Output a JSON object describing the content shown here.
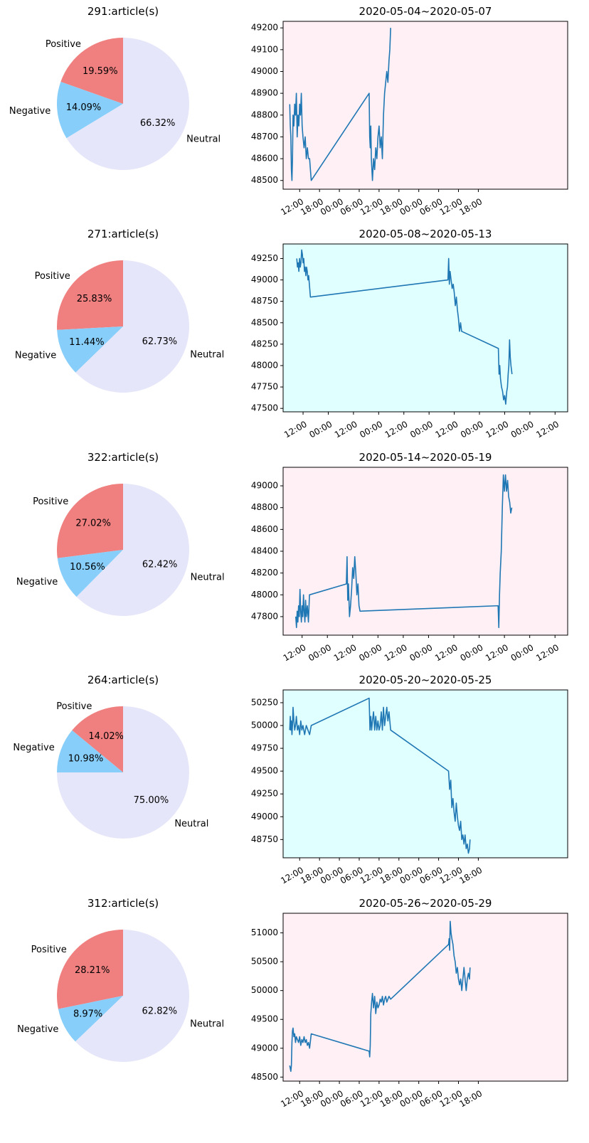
{
  "colors": {
    "positive": "#f08080",
    "negative": "#87cefa",
    "neutral": "#e6e6fa",
    "line": "#1f77b4",
    "bg_pink": "#fff0f5",
    "bg_cyan": "#e0ffff"
  },
  "chart_data": [
    {
      "type": "pie",
      "title": "291:article(s)",
      "labels": [
        "Positive",
        "Negative",
        "Neutral"
      ],
      "values": [
        19.59,
        14.09,
        66.32
      ],
      "value_labels": [
        "19.59%",
        "14.09%",
        "66.32%"
      ]
    },
    {
      "type": "line",
      "title": "2020-05-04~2020-05-07",
      "background": "pink",
      "yticks": [
        48500,
        48600,
        48700,
        48800,
        48900,
        49000,
        49100,
        49200
      ],
      "ylim": [
        48460,
        49230
      ],
      "xlim": [
        "2020-05-04 07:00",
        "2020-05-07 21:00"
      ],
      "xticks": [
        "2020-05-04 12:00",
        "2020-05-04 18:00",
        "2020-05-05 00:00",
        "2020-05-05 06:00",
        "2020-05-05 12:00",
        "2020-05-05 18:00",
        "2020-05-06 00:00",
        "2020-05-06 06:00",
        "2020-05-06 12:00",
        "2020-05-06 18:00"
      ],
      "xtick_labels": [
        "12:00",
        "18:00",
        "00:00",
        "06:00",
        "12:00",
        "18:00",
        "00:00",
        "06:00",
        "12:00",
        "18:00"
      ],
      "x": [
        "2020-05-04 09:00",
        "2020-05-04 09:10",
        "2020-05-04 09:20",
        "2020-05-04 09:30",
        "2020-05-04 09:40",
        "2020-05-04 09:50",
        "2020-05-04 10:00",
        "2020-05-04 10:15",
        "2020-05-04 10:30",
        "2020-05-04 10:45",
        "2020-05-04 11:00",
        "2020-05-04 11:15",
        "2020-05-04 11:30",
        "2020-05-04 11:45",
        "2020-05-04 12:00",
        "2020-05-04 12:15",
        "2020-05-04 12:30",
        "2020-05-04 12:45",
        "2020-05-04 13:00",
        "2020-05-04 13:20",
        "2020-05-04 13:40",
        "2020-05-04 14:00",
        "2020-05-04 14:20",
        "2020-05-04 14:40",
        "2020-05-04 15:00",
        "2020-05-04 15:15",
        "2020-05-04 15:30",
        "2020-05-05 09:00",
        "2020-05-05 09:10",
        "2020-05-05 09:20",
        "2020-05-05 09:30",
        "2020-05-05 09:40",
        "2020-05-05 09:50",
        "2020-05-05 10:00",
        "2020-05-05 10:20",
        "2020-05-05 10:40",
        "2020-05-05 11:00",
        "2020-05-05 11:20",
        "2020-05-05 11:40",
        "2020-05-05 12:00",
        "2020-05-05 12:20",
        "2020-05-05 12:40",
        "2020-05-05 13:00",
        "2020-05-05 13:20",
        "2020-05-05 13:40",
        "2020-05-05 14:00",
        "2020-05-05 14:20",
        "2020-05-05 14:40",
        "2020-05-05 15:00",
        "2020-05-05 15:15",
        "2020-05-05 15:30"
      ],
      "y": [
        48850,
        48750,
        48700,
        48550,
        48500,
        48600,
        48800,
        48750,
        48850,
        48800,
        48900,
        48700,
        48800,
        48750,
        48850,
        48800,
        48900,
        48750,
        48700,
        48650,
        48700,
        48600,
        48650,
        48600,
        48600,
        48550,
        48500,
        48900,
        48700,
        48650,
        48750,
        48600,
        48550,
        48500,
        48600,
        48550,
        48650,
        48600,
        48700,
        48750,
        48650,
        48700,
        48600,
        48800,
        48900,
        48950,
        49000,
        48950,
        49050,
        49100,
        49200
      ]
    },
    {
      "type": "pie",
      "title": "271:article(s)",
      "labels": [
        "Positive",
        "Negative",
        "Neutral"
      ],
      "values": [
        25.83,
        11.44,
        62.73
      ],
      "value_labels": [
        "25.83%",
        "11.44%",
        "62.73%"
      ]
    },
    {
      "type": "line",
      "title": "2020-05-08~2020-05-13",
      "background": "cyan",
      "yticks": [
        47500,
        47750,
        48000,
        48250,
        48500,
        48750,
        49000,
        49250
      ],
      "ylim": [
        47460,
        49420
      ],
      "xlim": [
        "2020-05-08 02:30",
        "2020-05-13 18:00"
      ],
      "xticks": [
        "2020-05-08 12:00",
        "2020-05-09 00:00",
        "2020-05-09 12:00",
        "2020-05-10 00:00",
        "2020-05-10 12:00",
        "2020-05-11 00:00",
        "2020-05-11 12:00",
        "2020-05-12 00:00",
        "2020-05-12 12:00",
        "2020-05-13 00:00",
        "2020-05-13 12:00"
      ],
      "xtick_labels": [
        "12:00",
        "00:00",
        "12:00",
        "00:00",
        "12:00",
        "00:00",
        "12:00",
        "00:00",
        "12:00",
        "00:00",
        "12:00"
      ],
      "x": [
        "2020-05-08 09:00",
        "2020-05-08 09:20",
        "2020-05-08 09:40",
        "2020-05-08 10:00",
        "2020-05-08 10:20",
        "2020-05-08 10:40",
        "2020-05-08 11:00",
        "2020-05-08 11:20",
        "2020-05-08 11:40",
        "2020-05-08 12:00",
        "2020-05-08 12:20",
        "2020-05-08 12:40",
        "2020-05-08 13:00",
        "2020-05-08 13:20",
        "2020-05-08 13:40",
        "2020-05-08 14:00",
        "2020-05-08 14:20",
        "2020-05-08 14:40",
        "2020-05-08 15:00",
        "2020-05-08 15:30",
        "2020-05-11 09:00",
        "2020-05-11 09:20",
        "2020-05-11 09:40",
        "2020-05-11 10:00",
        "2020-05-11 10:30",
        "2020-05-11 11:00",
        "2020-05-11 11:30",
        "2020-05-11 12:00",
        "2020-05-11 12:30",
        "2020-05-11 13:00",
        "2020-05-11 13:30",
        "2020-05-11 14:00",
        "2020-05-11 14:30",
        "2020-05-11 15:00",
        "2020-05-11 15:30",
        "2020-05-12 09:00",
        "2020-05-12 09:20",
        "2020-05-12 09:40",
        "2020-05-12 10:00",
        "2020-05-12 10:30",
        "2020-05-12 11:00",
        "2020-05-12 11:30",
        "2020-05-12 12:00",
        "2020-05-12 12:30",
        "2020-05-12 13:00",
        "2020-05-12 13:20",
        "2020-05-12 13:40",
        "2020-05-12 14:00",
        "2020-05-12 14:20",
        "2020-05-12 14:40",
        "2020-05-12 15:00",
        "2020-05-12 15:30"
      ],
      "y": [
        49250,
        49150,
        49200,
        49100,
        49250,
        49150,
        49200,
        49350,
        49300,
        49200,
        49250,
        49100,
        49150,
        49050,
        49150,
        49100,
        49000,
        49050,
        48950,
        48800,
        49000,
        49250,
        48950,
        49100,
        49000,
        48900,
        48950,
        48850,
        48700,
        48800,
        48650,
        48550,
        48400,
        48500,
        48400,
        48200,
        47900,
        48000,
        47850,
        47750,
        47700,
        47600,
        47650,
        47550,
        47700,
        47750,
        47900,
        48000,
        48300,
        48100,
        48000,
        47900
      ]
    },
    {
      "type": "pie",
      "title": "322:article(s)",
      "labels": [
        "Positive",
        "Negative",
        "Neutral"
      ],
      "values": [
        27.02,
        10.56,
        62.42
      ],
      "value_labels": [
        "27.02%",
        "10.56%",
        "62.42%"
      ]
    },
    {
      "type": "line",
      "title": "2020-05-14~2020-05-19",
      "background": "pink",
      "yticks": [
        47800,
        48000,
        48200,
        48400,
        48600,
        48800,
        49000
      ],
      "ylim": [
        47630,
        49170
      ],
      "xlim": [
        "2020-05-14 03:00",
        "2020-05-19 18:00"
      ],
      "xticks": [
        "2020-05-14 12:00",
        "2020-05-15 00:00",
        "2020-05-15 12:00",
        "2020-05-16 00:00",
        "2020-05-16 12:00",
        "2020-05-17 00:00",
        "2020-05-17 12:00",
        "2020-05-18 00:00",
        "2020-05-18 12:00",
        "2020-05-19 00:00",
        "2020-05-19 12:00"
      ],
      "xtick_labels": [
        "12:00",
        "00:00",
        "12:00",
        "00:00",
        "12:00",
        "00:00",
        "12:00",
        "00:00",
        "12:00",
        "00:00",
        "12:00"
      ],
      "x": [
        "2020-05-14 09:00",
        "2020-05-14 09:20",
        "2020-05-14 09:40",
        "2020-05-14 10:00",
        "2020-05-14 10:20",
        "2020-05-14 10:40",
        "2020-05-14 11:00",
        "2020-05-14 11:20",
        "2020-05-14 11:40",
        "2020-05-14 12:00",
        "2020-05-14 12:20",
        "2020-05-14 12:40",
        "2020-05-14 13:00",
        "2020-05-14 13:20",
        "2020-05-14 13:40",
        "2020-05-14 14:00",
        "2020-05-14 14:30",
        "2020-05-14 15:00",
        "2020-05-14 15:30",
        "2020-05-15 09:00",
        "2020-05-15 09:20",
        "2020-05-15 09:40",
        "2020-05-15 10:00",
        "2020-05-15 10:30",
        "2020-05-15 11:00",
        "2020-05-15 11:30",
        "2020-05-15 12:00",
        "2020-05-15 12:30",
        "2020-05-15 13:00",
        "2020-05-15 13:30",
        "2020-05-15 14:00",
        "2020-05-15 14:30",
        "2020-05-15 15:00",
        "2020-05-15 15:30",
        "2020-05-18 09:00",
        "2020-05-18 09:20",
        "2020-05-18 09:40",
        "2020-05-18 10:00",
        "2020-05-18 10:30",
        "2020-05-18 11:00",
        "2020-05-18 11:30",
        "2020-05-18 12:00",
        "2020-05-18 12:30",
        "2020-05-18 13:00",
        "2020-05-18 13:30",
        "2020-05-18 14:00",
        "2020-05-18 14:30",
        "2020-05-18 15:00",
        "2020-05-18 15:30"
      ],
      "y": [
        47800,
        47700,
        47850,
        47750,
        47900,
        47800,
        48050,
        47850,
        47750,
        47900,
        47800,
        48000,
        47850,
        47750,
        47950,
        47800,
        47900,
        47750,
        48000,
        48100,
        48350,
        47950,
        48100,
        47800,
        47900,
        48050,
        48250,
        48150,
        48350,
        48200,
        48000,
        48100,
        47900,
        47850,
        47900,
        47700,
        48000,
        48200,
        48400,
        48800,
        49100,
        48950,
        49100,
        48950,
        49050,
        48900,
        48850,
        48750,
        48800
      ]
    },
    {
      "type": "pie",
      "title": "264:article(s)",
      "labels": [
        "Positive",
        "Negative",
        "Neutral"
      ],
      "values": [
        14.02,
        10.98,
        75.0
      ],
      "value_labels": [
        "14.02%",
        "10.98%",
        "75.00%"
      ]
    },
    {
      "type": "line",
      "title": "2020-05-20~2020-05-25",
      "background": "cyan",
      "yticks": [
        48750,
        49000,
        49250,
        49500,
        49750,
        50000,
        50250
      ],
      "ylim": [
        48550,
        50390
      ],
      "xlim": [
        "2020-05-20 07:00",
        "2020-05-23 21:00"
      ],
      "xticks": [
        "2020-05-20 12:00",
        "2020-05-20 18:00",
        "2020-05-21 00:00",
        "2020-05-21 06:00",
        "2020-05-21 12:00",
        "2020-05-21 18:00",
        "2020-05-22 00:00",
        "2020-05-22 06:00",
        "2020-05-22 12:00",
        "2020-05-22 18:00"
      ],
      "xtick_labels": [
        "12:00",
        "18:00",
        "00:00",
        "06:00",
        "12:00",
        "18:00",
        "00:00",
        "06:00",
        "12:00",
        "18:00"
      ],
      "x": [
        "2020-05-20 09:00",
        "2020-05-20 09:10",
        "2020-05-20 09:20",
        "2020-05-20 09:30",
        "2020-05-20 09:40",
        "2020-05-20 09:50",
        "2020-05-20 10:00",
        "2020-05-20 10:15",
        "2020-05-20 10:30",
        "2020-05-20 10:45",
        "2020-05-20 11:00",
        "2020-05-20 11:20",
        "2020-05-20 11:40",
        "2020-05-20 12:00",
        "2020-05-20 12:20",
        "2020-05-20 12:40",
        "2020-05-20 13:00",
        "2020-05-20 13:30",
        "2020-05-20 14:00",
        "2020-05-20 14:30",
        "2020-05-20 15:00",
        "2020-05-20 15:30",
        "2020-05-21 09:00",
        "2020-05-21 09:15",
        "2020-05-21 09:30",
        "2020-05-21 09:45",
        "2020-05-21 10:00",
        "2020-05-21 10:20",
        "2020-05-21 10:40",
        "2020-05-21 11:00",
        "2020-05-21 11:20",
        "2020-05-21 11:40",
        "2020-05-21 12:00",
        "2020-05-21 12:20",
        "2020-05-21 12:40",
        "2020-05-21 13:00",
        "2020-05-21 13:20",
        "2020-05-21 13:40",
        "2020-05-21 14:00",
        "2020-05-21 14:20",
        "2020-05-21 14:40",
        "2020-05-21 15:00",
        "2020-05-21 15:30",
        "2020-05-22 09:00",
        "2020-05-22 09:20",
        "2020-05-22 09:40",
        "2020-05-22 10:00",
        "2020-05-22 10:20",
        "2020-05-22 10:40",
        "2020-05-22 11:00",
        "2020-05-22 11:20",
        "2020-05-22 11:40",
        "2020-05-22 12:00",
        "2020-05-22 12:20",
        "2020-05-22 12:40",
        "2020-05-22 13:00",
        "2020-05-22 13:20",
        "2020-05-22 13:40",
        "2020-05-22 14:00",
        "2020-05-22 14:20",
        "2020-05-22 14:40",
        "2020-05-22 15:00",
        "2020-05-22 15:20",
        "2020-05-22 15:30"
      ],
      "y": [
        49950,
        50100,
        49950,
        50050,
        49900,
        50000,
        50200,
        50050,
        49950,
        50000,
        50100,
        49950,
        50000,
        49900,
        50050,
        49950,
        50000,
        49900,
        50000,
        49950,
        49900,
        50000,
        50300,
        49950,
        50100,
        49950,
        50050,
        50150,
        49950,
        50100,
        49950,
        50050,
        49950,
        50000,
        50150,
        49950,
        50200,
        50000,
        50100,
        50200,
        50050,
        50150,
        49950,
        49500,
        49300,
        49400,
        49100,
        49200,
        49050,
        48950,
        49150,
        49000,
        48900,
        48850,
        48950,
        48750,
        48800,
        48700,
        48800,
        48650,
        48700,
        48600,
        48650,
        48750
      ]
    },
    {
      "type": "pie",
      "title": "312:article(s)",
      "labels": [
        "Positive",
        "Negative",
        "Neutral"
      ],
      "values": [
        28.21,
        8.97,
        62.82
      ],
      "value_labels": [
        "28.21%",
        "8.97%",
        "62.82%"
      ]
    },
    {
      "type": "line",
      "title": "2020-05-26~2020-05-29",
      "background": "pink",
      "yticks": [
        48500,
        49000,
        49500,
        50000,
        50500,
        51000
      ],
      "ylim": [
        48430,
        51340
      ],
      "xlim": [
        "2020-05-26 07:00",
        "2020-05-29 21:00"
      ],
      "xticks": [
        "2020-05-26 12:00",
        "2020-05-26 18:00",
        "2020-05-27 00:00",
        "2020-05-27 06:00",
        "2020-05-27 12:00",
        "2020-05-27 18:00",
        "2020-05-28 00:00",
        "2020-05-28 06:00",
        "2020-05-28 12:00",
        "2020-05-28 18:00"
      ],
      "xtick_labels": [
        "12:00",
        "18:00",
        "00:00",
        "06:00",
        "12:00",
        "18:00",
        "00:00",
        "06:00",
        "12:00",
        "18:00"
      ],
      "x": [
        "2020-05-26 09:00",
        "2020-05-26 09:10",
        "2020-05-26 09:20",
        "2020-05-26 09:30",
        "2020-05-26 09:40",
        "2020-05-26 09:50",
        "2020-05-26 10:00",
        "2020-05-26 10:15",
        "2020-05-26 10:30",
        "2020-05-26 10:45",
        "2020-05-26 11:00",
        "2020-05-26 11:20",
        "2020-05-26 11:40",
        "2020-05-26 12:00",
        "2020-05-26 12:20",
        "2020-05-26 12:40",
        "2020-05-26 13:00",
        "2020-05-26 13:20",
        "2020-05-26 13:40",
        "2020-05-26 14:00",
        "2020-05-26 14:20",
        "2020-05-26 14:40",
        "2020-05-26 15:00",
        "2020-05-26 15:30",
        "2020-05-27 09:00",
        "2020-05-27 09:10",
        "2020-05-27 09:20",
        "2020-05-27 09:30",
        "2020-05-27 09:45",
        "2020-05-27 10:00",
        "2020-05-27 10:20",
        "2020-05-27 10:40",
        "2020-05-27 11:00",
        "2020-05-27 11:20",
        "2020-05-27 11:40",
        "2020-05-27 12:00",
        "2020-05-27 12:20",
        "2020-05-27 12:40",
        "2020-05-27 13:00",
        "2020-05-27 13:20",
        "2020-05-27 13:40",
        "2020-05-27 14:00",
        "2020-05-27 14:20",
        "2020-05-27 14:40",
        "2020-05-27 15:00",
        "2020-05-27 15:30",
        "2020-05-28 09:00",
        "2020-05-28 09:10",
        "2020-05-28 09:20",
        "2020-05-28 09:30",
        "2020-05-28 09:45",
        "2020-05-28 10:00",
        "2020-05-28 10:20",
        "2020-05-28 10:40",
        "2020-05-28 11:00",
        "2020-05-28 11:20",
        "2020-05-28 11:40",
        "2020-05-28 12:00",
        "2020-05-28 12:20",
        "2020-05-28 12:40",
        "2020-05-28 13:00",
        "2020-05-28 13:20",
        "2020-05-28 13:40",
        "2020-05-28 14:00",
        "2020-05-28 14:20",
        "2020-05-28 14:40",
        "2020-05-28 15:00",
        "2020-05-28 15:20",
        "2020-05-28 15:30"
      ],
      "y": [
        48700,
        48650,
        48600,
        48700,
        49100,
        49300,
        49350,
        49200,
        49250,
        49100,
        49200,
        49150,
        49100,
        49200,
        49050,
        49150,
        49100,
        49200,
        49100,
        49150,
        49050,
        49100,
        49000,
        49250,
        48950,
        48850,
        49050,
        49600,
        49800,
        49950,
        49700,
        49900,
        49600,
        49800,
        49700,
        49750,
        49850,
        49800,
        49900,
        49750,
        49850,
        49900,
        49800,
        49850,
        49900,
        49850,
        50800,
        50900,
        50700,
        51200,
        51000,
        50900,
        50800,
        50600,
        50500,
        50300,
        50400,
        50200,
        50100,
        50200,
        50000,
        50200,
        50400,
        50200,
        50000,
        50200,
        50300,
        50200,
        50400
      ]
    }
  ]
}
